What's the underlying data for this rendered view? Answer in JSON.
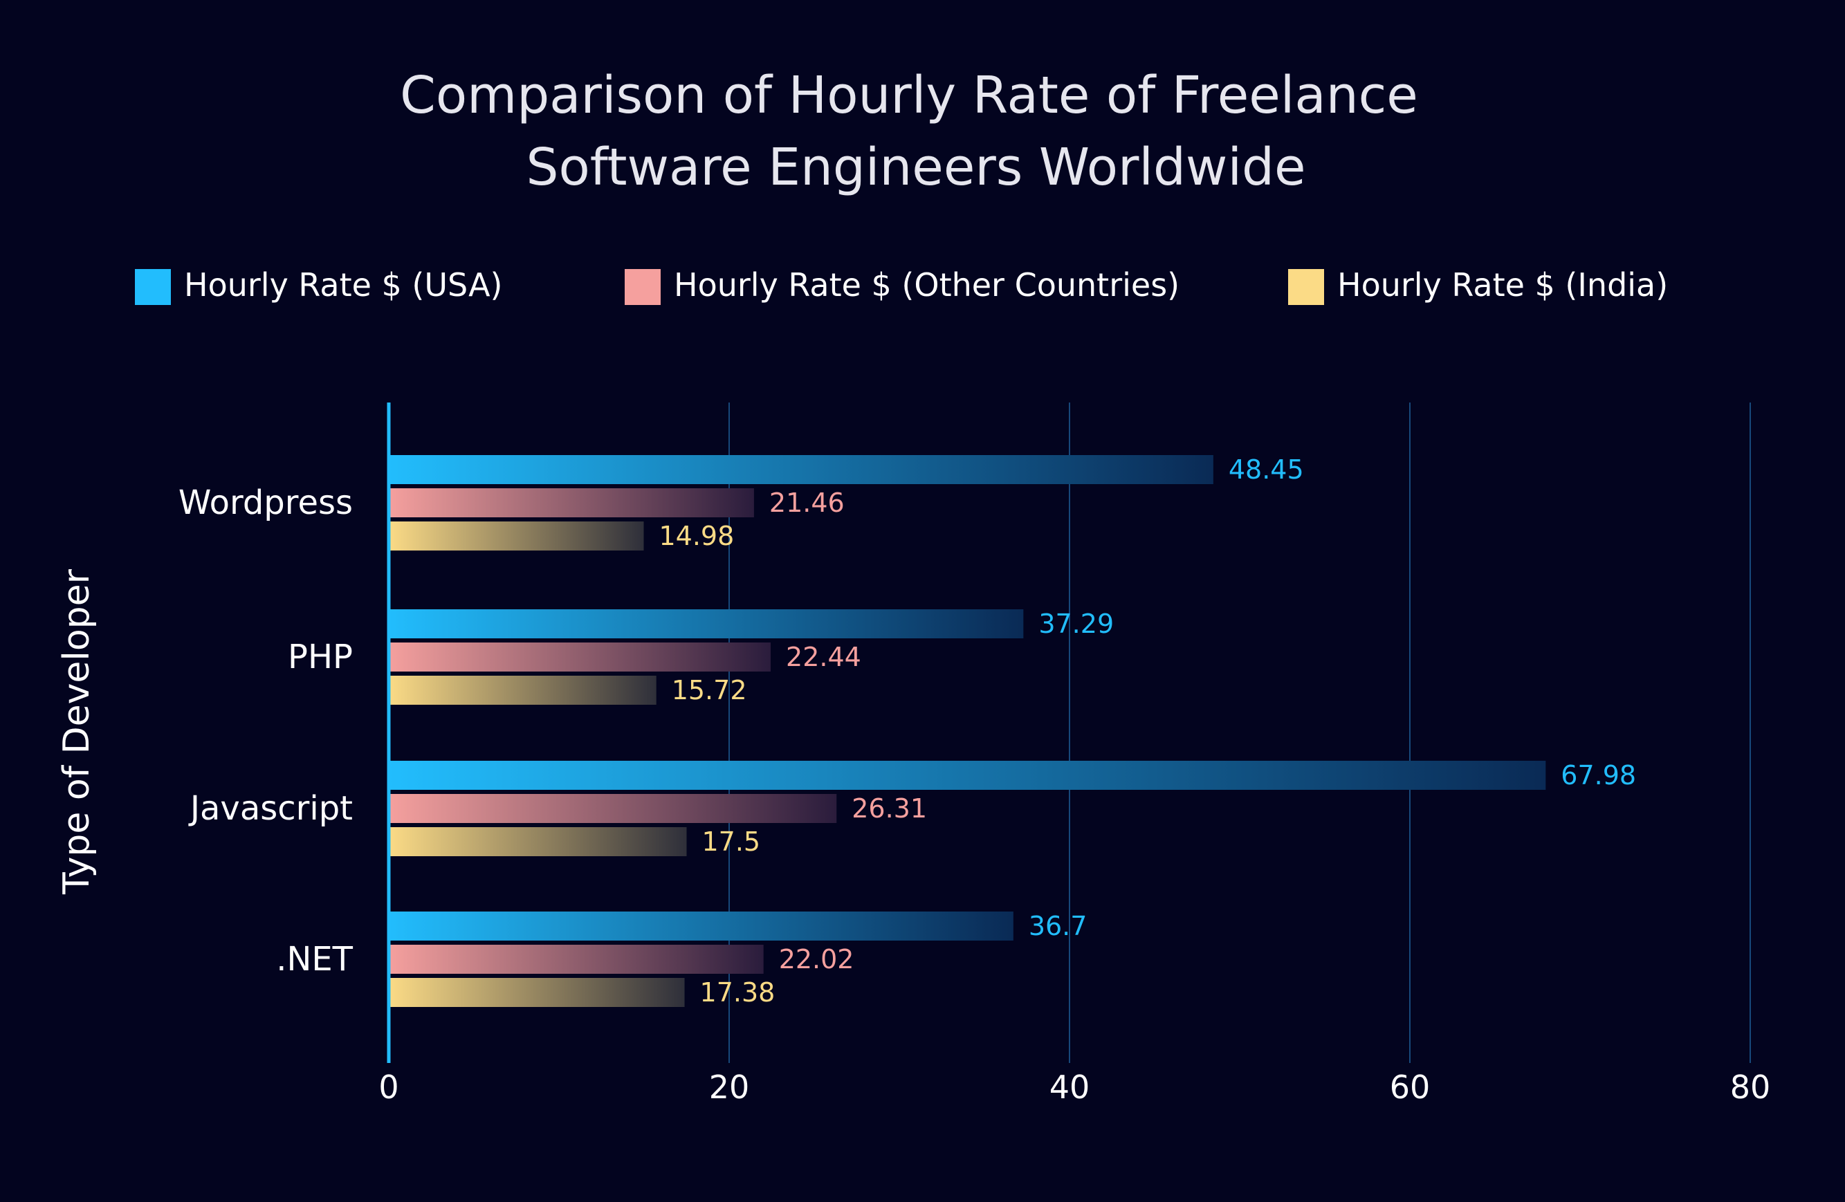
{
  "chart_data": {
    "type": "bar",
    "orientation": "horizontal",
    "title_lines": [
      "Comparison of Hourly Rate of Freelance",
      "Software Engineers Worldwide"
    ],
    "ylabel": "Type of Developer",
    "xlabel": "",
    "categories": [
      "Wordpress",
      "PHP",
      "Javascript",
      ".NET"
    ],
    "series": [
      {
        "name": "Hourly Rate $ (USA)",
        "color": "#22bdfd",
        "values": [
          48.45,
          37.29,
          67.98,
          36.7
        ],
        "labels": [
          "48.45",
          "37.29",
          "67.98",
          "36.7"
        ]
      },
      {
        "name": "Hourly Rate $ (Other Countries)",
        "color": "#f5a09e",
        "values": [
          21.46,
          22.44,
          26.31,
          22.02
        ],
        "labels": [
          "21.46",
          "22.44",
          "26.31",
          "22.02"
        ]
      },
      {
        "name": "Hourly Rate $ (India)",
        "color": "#fbdb86",
        "values": [
          14.98,
          15.72,
          17.5,
          17.38
        ],
        "labels": [
          "14.98",
          "15.72",
          "17.5",
          "17.38"
        ]
      }
    ],
    "xlim": [
      0,
      80
    ],
    "xticks": [
      0,
      20,
      40,
      60,
      80
    ],
    "xtick_labels": [
      "0",
      "20",
      "40",
      "60",
      "80"
    ],
    "grid": true,
    "legend_position": "top"
  }
}
